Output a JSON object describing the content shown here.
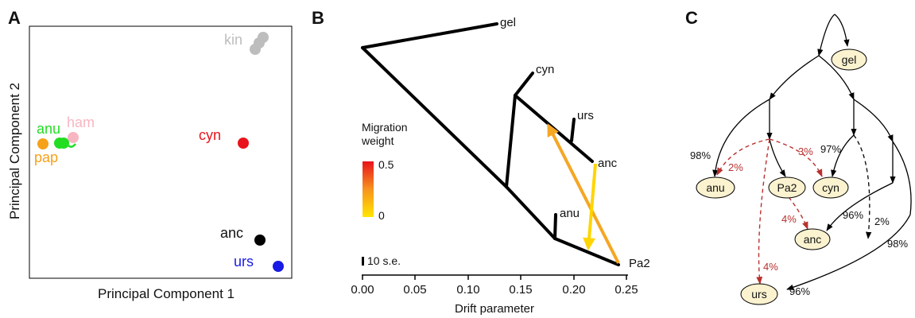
{
  "panel_a": {
    "letter": "A",
    "xlabel": "Principal Component 1",
    "ylabel": "Principal Component 2",
    "points": [
      {
        "label": "kin",
        "color": "#bdbdbd"
      },
      {
        "label": "anu",
        "color": "#22dd22"
      },
      {
        "label": "ham",
        "color": "#f7b6c2"
      },
      {
        "label": "pap",
        "color": "#f6a11a"
      },
      {
        "label": "cyn",
        "color": "#e8131b"
      },
      {
        "label": "anc",
        "color": "#000000"
      },
      {
        "label": "urs",
        "color": "#1a1ae6"
      }
    ]
  },
  "panel_b": {
    "letter": "B",
    "xlabel": "Drift parameter",
    "ticks": [
      "0.00",
      "0.05",
      "0.10",
      "0.15",
      "0.20",
      "0.25"
    ],
    "legend_title_1": "Migration",
    "legend_title_2": "weight",
    "legend_max": "0.5",
    "legend_min": "0",
    "se_label": "10 s.e.",
    "leaves": [
      "gel",
      "cyn",
      "urs",
      "anc",
      "anu",
      "Pa2"
    ],
    "colors": {
      "tree": "#000000",
      "migration_high": "#f5a623",
      "migration_low": "#ffd500"
    }
  },
  "panel_c": {
    "letter": "C",
    "nodes": [
      "gel",
      "anu",
      "Pa2",
      "cyn",
      "anc",
      "urs"
    ],
    "black_pcts": [
      "98%",
      "97%",
      "96%",
      "98%",
      "96%",
      "2%"
    ],
    "red_pcts": [
      "2%",
      "3%",
      "4%",
      "4%"
    ],
    "colors": {
      "node_fill": "#fbf2cf",
      "admix": "#b8312f"
    }
  }
}
